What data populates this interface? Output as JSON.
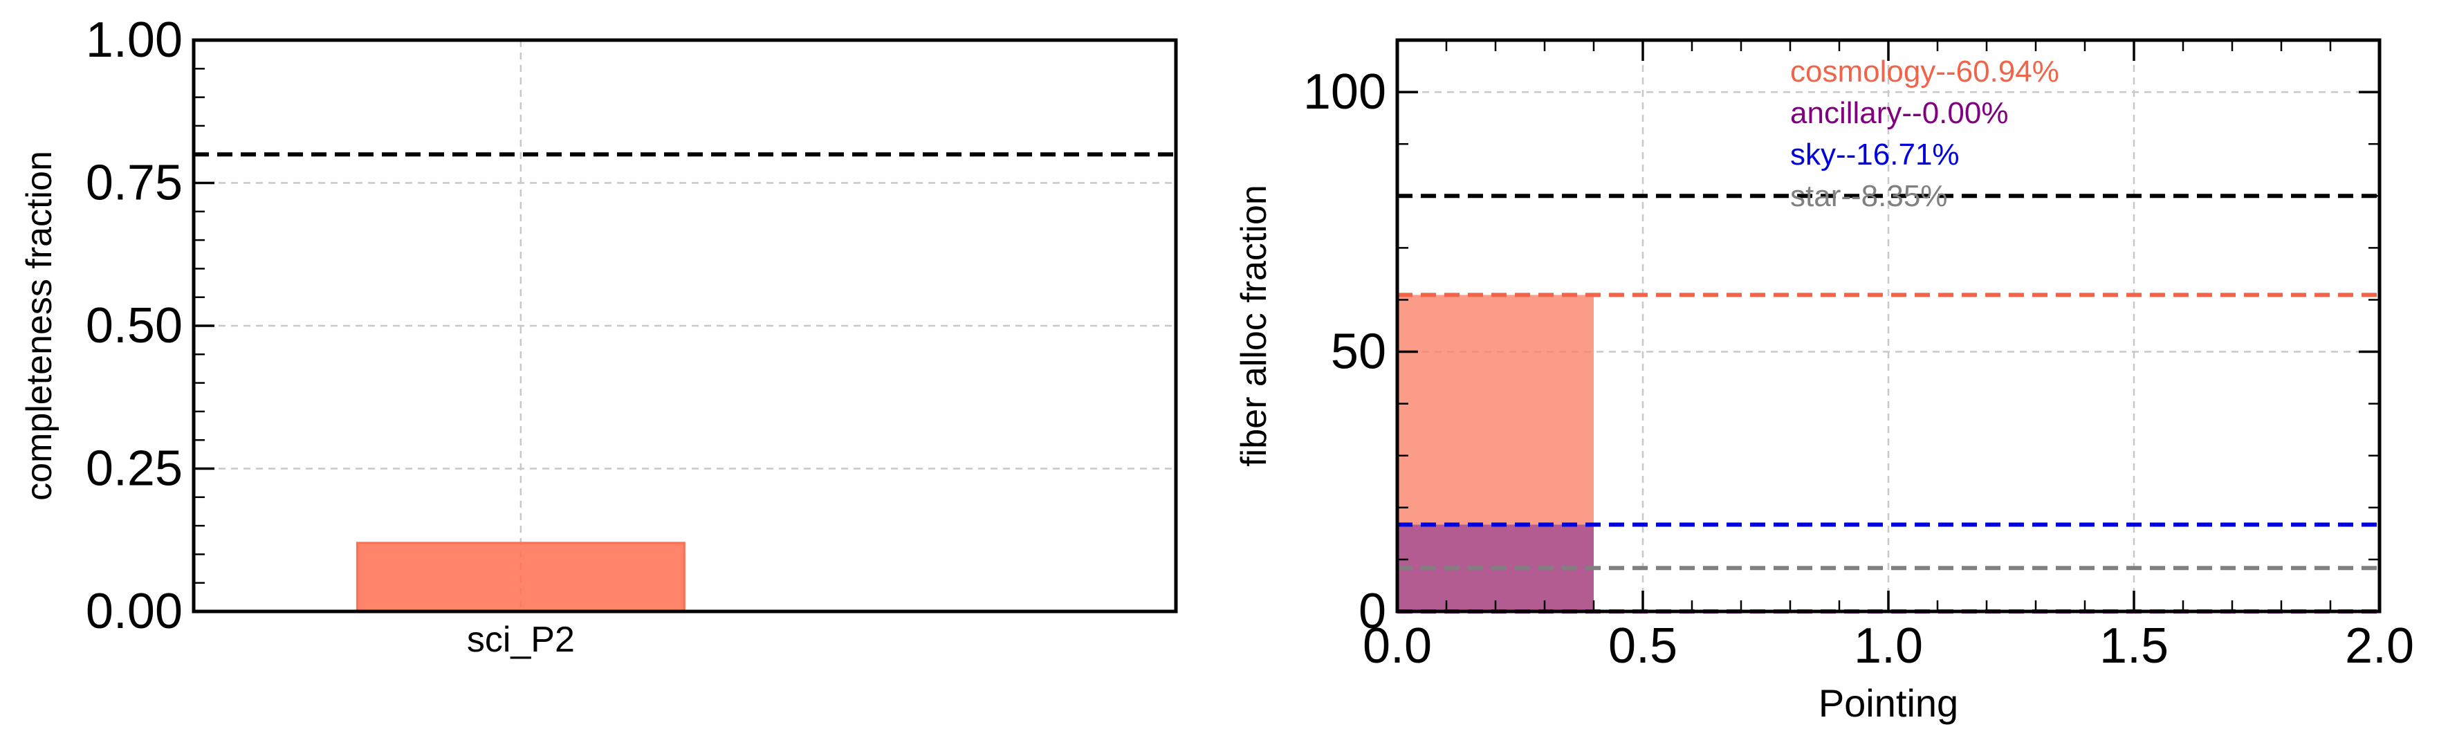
{
  "chart_data": [
    {
      "type": "bar",
      "categories": [
        "sci_P2"
      ],
      "values": [
        0.12
      ],
      "ylabel": "completeness fraction",
      "xlabel": "",
      "ylim": [
        0,
        1.0
      ],
      "yticks": [
        "0.00",
        "0.25",
        "0.50",
        "0.75",
        "1.00"
      ],
      "reference_line": 0.8,
      "bar_color": "#ff6f4f",
      "grid": true
    },
    {
      "type": "bar",
      "xlabel": "Pointing",
      "ylabel": "fiber alloc fraction",
      "xlim": [
        0,
        2.0
      ],
      "ylim": [
        0,
        110
      ],
      "xticks": [
        "0.0",
        "0.5",
        "1.0",
        "1.5",
        "2.0"
      ],
      "yticks": [
        "0",
        "50",
        "100"
      ],
      "bars": [
        {
          "name": "cosmology",
          "x_start": 0.0,
          "x_end": 0.4,
          "value": 60.94,
          "color": "#fa8066"
        },
        {
          "name": "sky",
          "x_start": 0.0,
          "x_end": 0.4,
          "value": 16.71,
          "color": "#9e4a94"
        }
      ],
      "reference_line": 80,
      "series": [
        {
          "name": "cosmology",
          "label": "cosmology--60.94%",
          "value": 60.94,
          "color": "#f0654a"
        },
        {
          "name": "ancillary",
          "label": "ancillary--0.00%",
          "value": 0.0,
          "color": "#800080"
        },
        {
          "name": "sky",
          "label": "sky--16.71%",
          "value": 16.71,
          "color": "#0000dd"
        },
        {
          "name": "star",
          "label": "star--8.35%",
          "value": 8.35,
          "color": "#808080"
        }
      ],
      "grid": true
    }
  ]
}
